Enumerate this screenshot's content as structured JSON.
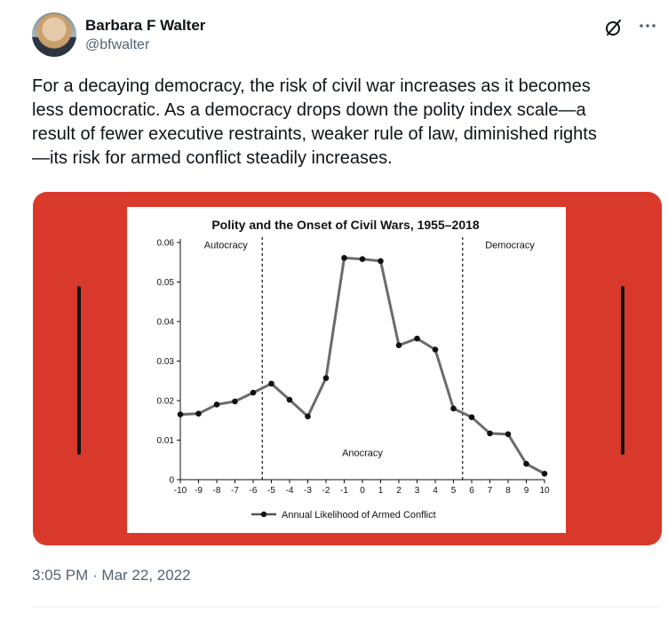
{
  "author": {
    "name": "Barbara F Walter",
    "handle": "@bfwalter"
  },
  "icons": {
    "grok": "grok-icon",
    "more": "more-icon"
  },
  "tweet": {
    "text": "For a decaying democracy, the risk of civil war increases as it becomes\nless democratic. As a democracy drops down the polity index scale—a\nresult of fewer executive restraints, weaker rule of law, diminished rights\n—its risk for armed conflict steadily increases.",
    "timestamp": "3:05 PM · Mar 22, 2022"
  },
  "colors": {
    "media_background": "#d9392a",
    "text_primary": "#0f1419",
    "text_secondary": "#536471"
  },
  "chart_data": {
    "type": "line",
    "title": "Polity and the Onset of Civil Wars, 1955–2018",
    "xlabel": "",
    "ylabel": "",
    "x": [
      -10,
      -9,
      -8,
      -7,
      -6,
      -5,
      -4,
      -3,
      -2,
      -1,
      0,
      1,
      2,
      3,
      4,
      5,
      6,
      7,
      8,
      9,
      10
    ],
    "xticks": [
      "-10",
      "-9",
      "-8",
      "-7",
      "-6",
      "-5",
      "-4",
      "-3",
      "-2",
      "-1",
      "0",
      "1",
      "2",
      "3",
      "4",
      "5",
      "6",
      "7",
      "8",
      "9",
      "10"
    ],
    "series": [
      {
        "name": "Annual Likelihood of Armed Conflict",
        "values": [
          0.0165,
          0.0167,
          0.019,
          0.0198,
          0.022,
          0.0243,
          0.0202,
          0.016,
          0.0257,
          0.0561,
          0.0558,
          0.0553,
          0.034,
          0.0357,
          0.0329,
          0.018,
          0.0158,
          0.0117,
          0.0115,
          0.004,
          0.0015
        ]
      }
    ],
    "ylim": [
      0,
      0.06
    ],
    "yticks": [
      "0",
      "0.01",
      "0.02",
      "0.03",
      "0.04",
      "0.05",
      "0.06"
    ],
    "ytick_values": [
      0,
      0.01,
      0.02,
      0.03,
      0.04,
      0.05,
      0.06
    ],
    "dividers": [
      -5.5,
      5.5
    ],
    "regions": [
      {
        "label": "Autocracy",
        "x": -7.5,
        "y": 0.0585
      },
      {
        "label": "Anocracy",
        "x": 0,
        "y": 0.006
      },
      {
        "label": "Democracy",
        "x": 8.1,
        "y": 0.0585
      }
    ],
    "legend_placement": "bottom-center",
    "grid": false
  }
}
